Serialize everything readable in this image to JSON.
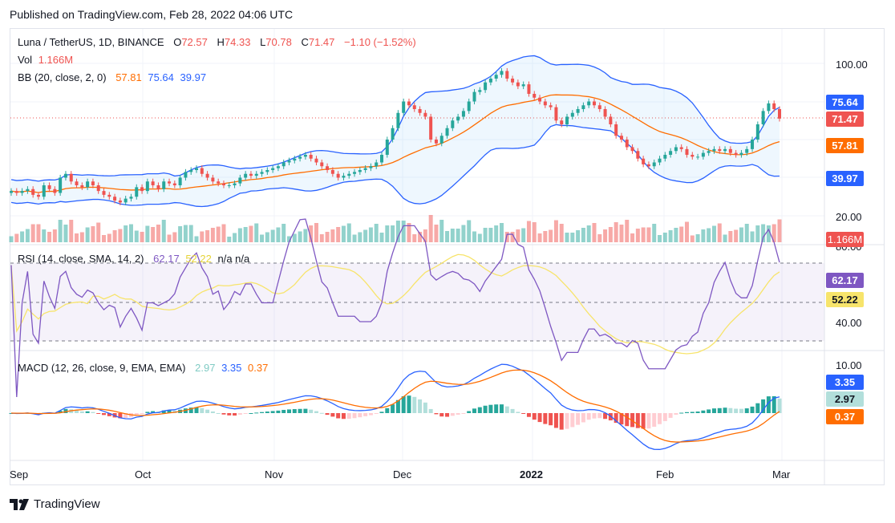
{
  "header": {
    "published": "Published on TradingView.com, Feb 28, 2022 04:06 UTC"
  },
  "legend": {
    "symbol": "Luna / TetherUS, 1D, BINANCE",
    "o_label": "O",
    "o": "72.57",
    "h_label": "H",
    "h": "74.33",
    "l_label": "L",
    "l": "70.78",
    "c_label": "C",
    "c": "71.47",
    "change": "−1.10 (−1.52%)",
    "vol_label": "Vol",
    "vol": "1.166M",
    "bb_label": "BB (20, close, 2, 0)",
    "bb_mid": "57.81",
    "bb_up": "75.64",
    "bb_low": "39.97",
    "rsi_label": "RSI (14, close, SMA, 14, 2)",
    "rsi": "62.17",
    "rsi_ma": "52.22",
    "rsi_na": "n/a  n/a",
    "macd_label": "MACD (12, 26, close, 9, EMA, EMA)",
    "macd_hist": "2.97",
    "macd": "3.35",
    "macd_signal": "0.37"
  },
  "price_axis": [
    "100.00",
    "20.00"
  ],
  "rsi_axis": [
    "80.00",
    "40.00"
  ],
  "macd_axis": [
    "10.00"
  ],
  "tags": {
    "bb_up": "75.64",
    "close": "71.47",
    "bb_mid": "57.81",
    "bb_low": "39.97",
    "vol": "1.166M",
    "rsi": "62.17",
    "rsi_ma": "52.22",
    "macd": "3.35",
    "macd_hist": "2.97",
    "macd_signal": "0.37"
  },
  "time_axis": [
    "Sep",
    "Oct",
    "Nov",
    "Dec",
    "2022",
    "Jan",
    "Feb",
    "Mar"
  ],
  "footer": {
    "brand": "TradingView"
  },
  "colors": {
    "up": "#26a69a",
    "down": "#ef5350",
    "bb_band": "#2962ff",
    "bb_basis": "#ff6d00",
    "rsi": "#7e57c2",
    "rsi_ma": "#f7e46b",
    "macd": "#2962ff",
    "signal": "#ff6d00"
  },
  "chart_data": {
    "type": "candlestick",
    "symbol": "Luna / TetherUS",
    "interval": "1D",
    "x_start": "2021-08-31",
    "x_end": "2022-02-28",
    "close": [
      33,
      32,
      33,
      34,
      31,
      30,
      36,
      34,
      32,
      40,
      42,
      38,
      36,
      35,
      38,
      36,
      33,
      31,
      30,
      28,
      27,
      29,
      30,
      35,
      33,
      38,
      36,
      34,
      38,
      37,
      36,
      40,
      43,
      44,
      45,
      42,
      40,
      38,
      37,
      36,
      36,
      37,
      40,
      42,
      41,
      42,
      43,
      44,
      45,
      46,
      48,
      49,
      50,
      51,
      52,
      50,
      48,
      46,
      44,
      42,
      40,
      41,
      42,
      43,
      44,
      45,
      46,
      48,
      52,
      60,
      66,
      74,
      80,
      78,
      76,
      74,
      72,
      60,
      58,
      62,
      66,
      70,
      72,
      75,
      80,
      85,
      86,
      90,
      92,
      94,
      96,
      92,
      90,
      88,
      89,
      84,
      82,
      80,
      78,
      77,
      70,
      68,
      72,
      74,
      76,
      78,
      80,
      78,
      76,
      72,
      68,
      62,
      60,
      56,
      54,
      50,
      47,
      46,
      48,
      50,
      52,
      54,
      56,
      55,
      52,
      51,
      51,
      53,
      54,
      55,
      54,
      55,
      53,
      52,
      53,
      55,
      60,
      68,
      75,
      79,
      76,
      71
    ],
    "y_range_visible": [
      10,
      120
    ],
    "bollinger": {
      "basis_last": 57.81,
      "upper_last": 75.64,
      "lower_last": 39.97
    },
    "volume_last": "1.166M",
    "rsi": {
      "last": 62.17,
      "ma_last": 52.22,
      "range": [
        20,
        85
      ]
    },
    "macd": {
      "macd_last": 3.35,
      "signal_last": 0.37,
      "hist_last": 2.97
    }
  }
}
